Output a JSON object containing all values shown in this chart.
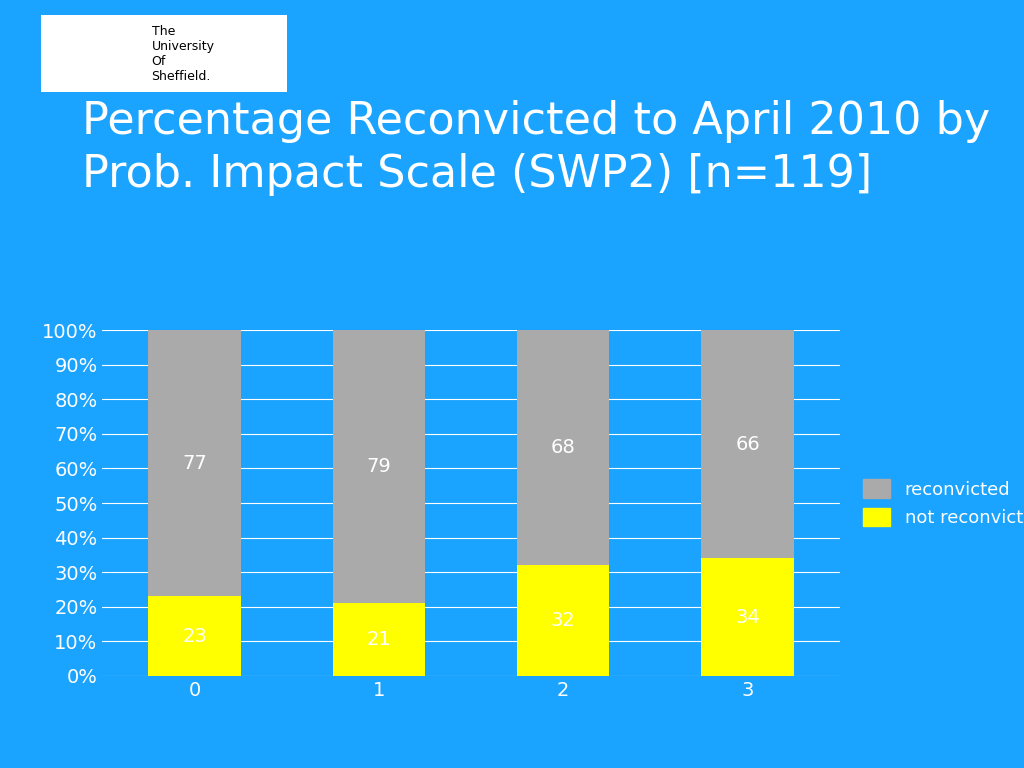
{
  "title": "Percentage Reconvicted to April 2010 by\nProb. Impact Scale (SWP2) [n=119]",
  "background_color": "#1aa3ff",
  "plot_bg_color": "#1aa3ff",
  "categories": [
    0,
    1,
    2,
    3
  ],
  "not_reconvicted": [
    23,
    21,
    32,
    34
  ],
  "reconvicted": [
    77,
    79,
    68,
    66
  ],
  "bar_color_yellow": "#ffff00",
  "bar_color_gray": "#aaaaaa",
  "grid_color": "#ffffff",
  "text_color": "#ffffff",
  "title_fontsize": 32,
  "tick_fontsize": 14,
  "legend_fontsize": 13,
  "label_fontsize": 14,
  "ylim": [
    0,
    100
  ],
  "yticks": [
    0,
    10,
    20,
    30,
    40,
    50,
    60,
    70,
    80,
    90,
    100
  ],
  "ytick_labels": [
    "0%",
    "10%",
    "20%",
    "30%",
    "40%",
    "50%",
    "60%",
    "70%",
    "80%",
    "90%",
    "100%"
  ]
}
